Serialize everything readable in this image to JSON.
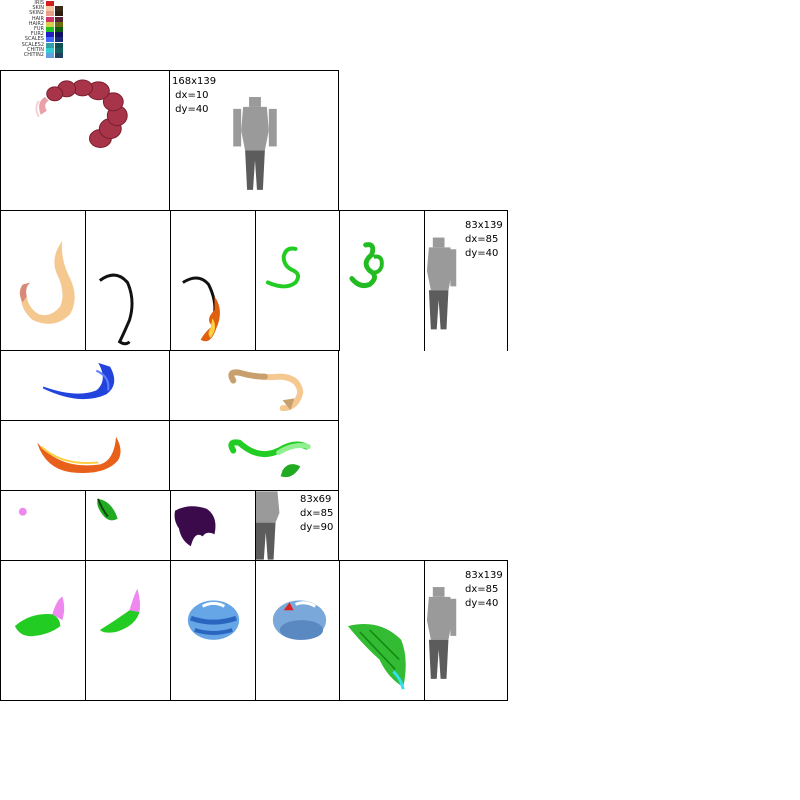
{
  "legend": [
    {
      "label": "IRIS",
      "c1": "#d21e1e",
      "c2": "#ffffff"
    },
    {
      "label": "SKIN",
      "c1": "#f5c6a0",
      "c2": "#3a2a1a"
    },
    {
      "label": "SKIN2",
      "c1": "#e9a08a",
      "c2": "#2b1d14"
    },
    {
      "label": "HAIR",
      "c1": "#cc3366",
      "c2": "#552233"
    },
    {
      "label": "HAIR2",
      "c1": "#d8d048",
      "c2": "#6a6a10"
    },
    {
      "label": "FUR",
      "c1": "#22c022",
      "c2": "#0f5a0f"
    },
    {
      "label": "FUR2",
      "c1": "#2020c0",
      "c2": "#101060"
    },
    {
      "label": "SCALES",
      "c1": "#4068ff",
      "c2": "#1a2a7a"
    },
    {
      "label": "SCALES2",
      "c1": "#30a0a0",
      "c2": "#105050"
    },
    {
      "label": "CHITIN",
      "c1": "#30d0d0",
      "c2": "#106060"
    },
    {
      "label": "CHITIN2",
      "c1": "#60a0e0",
      "c2": "#204060"
    }
  ],
  "labels": {
    "dim_a": "168x139\n dx=10\n dy=40",
    "dim_b": "83x139\ndx=85\ndy=40",
    "dim_c": "83x69\ndx=85\ndy=90",
    "dim_d": "83x139\ndx=85\ndy=40"
  }
}
